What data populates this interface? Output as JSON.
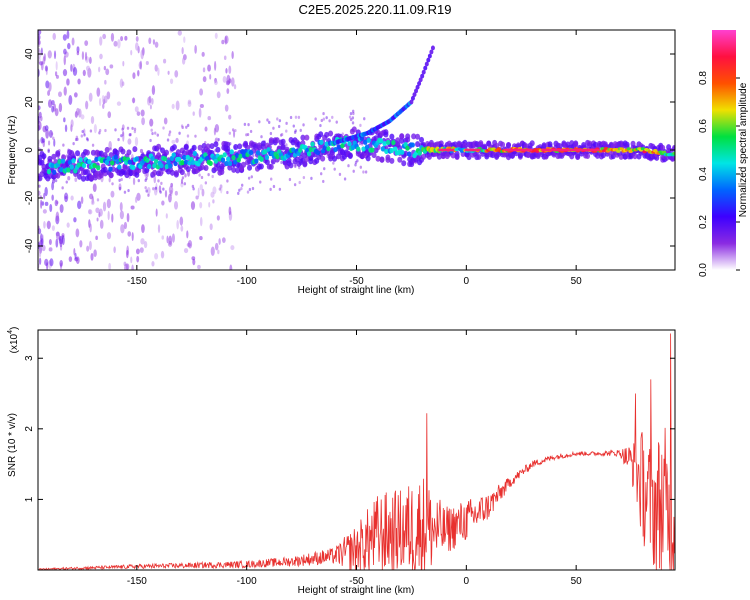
{
  "figure": {
    "title": "C2E5.2025.220.11.09.R19"
  },
  "chart_data": [
    {
      "type": "heatmap",
      "title": "C2E5.2025.220.11.09.R19",
      "xlabel": "Height of straight line (km)",
      "ylabel": "Frequency (Hz)",
      "xlim": [
        -195,
        95
      ],
      "ylim": [
        -50,
        50
      ],
      "xticks": [
        -150,
        -100,
        -50,
        0,
        50
      ],
      "yticks": [
        -40,
        -20,
        0,
        20,
        40
      ],
      "colorbar": {
        "label": "Normalized spectral amplitude",
        "range": [
          0,
          1
        ],
        "ticks": [
          "0.0",
          "0.2",
          "0.4",
          "0.6",
          "0.8"
        ],
        "tick_values": [
          0,
          0.2,
          0.4,
          0.6,
          0.8
        ],
        "colormap": [
          "#ffffff",
          "#8a2be2",
          "#3d00ff",
          "#0064ff",
          "#00e5e5",
          "#00e040",
          "#f0e000",
          "#ff5000",
          "#ff1040",
          "#ff40d0"
        ]
      },
      "main_trace": [
        {
          "x": -185,
          "y": -7
        },
        {
          "x": -170,
          "y": -6
        },
        {
          "x": -150,
          "y": -5
        },
        {
          "x": -125,
          "y": -4
        },
        {
          "x": -100,
          "y": -3
        },
        {
          "x": -80,
          "y": -1
        },
        {
          "x": -65,
          "y": 1
        },
        {
          "x": -52,
          "y": 3
        },
        {
          "x": -40,
          "y": 2
        },
        {
          "x": -25,
          "y": 0
        },
        {
          "x": -10,
          "y": 0
        },
        {
          "x": 10,
          "y": 0
        },
        {
          "x": 50,
          "y": 0
        },
        {
          "x": 80,
          "y": 0
        },
        {
          "x": 95,
          "y": -2
        }
      ],
      "curved_branch": [
        {
          "x": -60,
          "y": 3
        },
        {
          "x": -45,
          "y": 7
        },
        {
          "x": -35,
          "y": 12
        },
        {
          "x": -25,
          "y": 20
        },
        {
          "x": -20,
          "y": 31
        },
        {
          "x": -15,
          "y": 43
        }
      ],
      "grid": false
    },
    {
      "type": "line",
      "xlabel": "Height of straight line (km)",
      "ylabel": "SNR (10 * v/v)",
      "yscale_label": "(x10",
      "yscale_exp": "4",
      "xlim": [
        -195,
        95
      ],
      "ylim": [
        0,
        3.4
      ],
      "xticks": [
        -150,
        -100,
        -50,
        0,
        50
      ],
      "yticks": [
        1,
        2,
        3
      ],
      "color": "#e8302e",
      "series": [
        {
          "x": [
            -195,
            -150,
            -100,
            -80,
            -60,
            -50,
            -40,
            -30,
            -20,
            -10,
            0,
            10,
            20,
            30,
            40,
            50,
            60,
            70,
            75,
            80,
            85,
            90,
            95
          ],
          "mean": [
            0.01,
            0.05,
            0.08,
            0.12,
            0.2,
            0.3,
            0.5,
            0.55,
            0.6,
            0.55,
            0.7,
            0.9,
            1.25,
            1.5,
            1.6,
            1.65,
            1.65,
            1.66,
            1.55,
            1.2,
            0.9,
            0.9,
            0.7
          ],
          "spread": [
            0.01,
            0.03,
            0.05,
            0.07,
            0.12,
            0.35,
            0.6,
            0.6,
            0.8,
            0.35,
            0.3,
            0.2,
            0.08,
            0.05,
            0.04,
            0.03,
            0.03,
            0.05,
            0.25,
            0.8,
            0.9,
            1.2,
            0.8
          ]
        }
      ],
      "peaks": [
        {
          "x": -18,
          "y": 2.22
        },
        {
          "x": 77,
          "y": 2.5
        },
        {
          "x": 84,
          "y": 2.7
        },
        {
          "x": 93,
          "y": 3.35
        }
      ]
    }
  ]
}
